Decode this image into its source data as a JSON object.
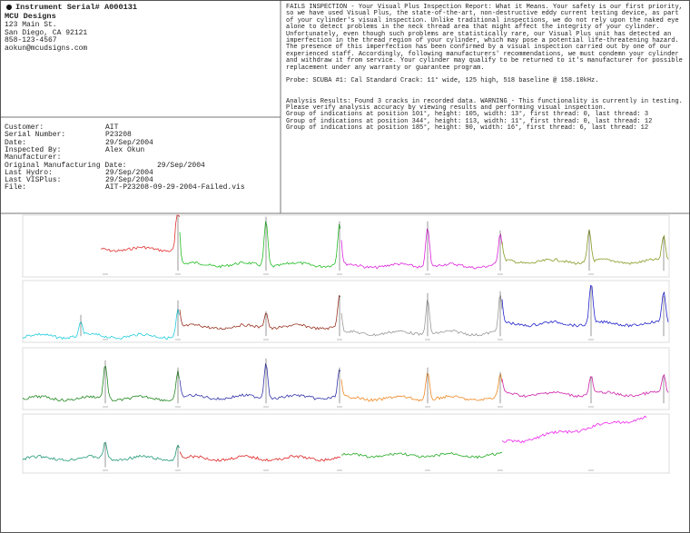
{
  "header": {
    "title": "Instrument Serial# A000131",
    "company": "MCU Designs",
    "address": [
      "123 Main St.",
      "San Diego, CA 92121",
      "858-123-4567",
      "aokun@mcudsigns.com"
    ]
  },
  "report": {
    "summary": [
      "FAILS INSPECTION - Your Visual Plus Inspection Report: What it Means. Your safety is our first priority,",
      "so we have used Visual Plus, the state-of-the-art, non-destructive eddy current testing device, as part",
      "of your cylinder's visual inspection. Unlike traditional inspections, we do not rely upon the naked eye",
      "alone to detect problems in the neck thread area that might affect the integrity of your cylinder.",
      "Unfortunately, even though such problems are statistically rare, our Visual Plus unit has detected an",
      "imperfection in the thread region of your cylinder, which may pose a potential life-threatening hazard.",
      "The presence of this imperfection has been confirmed by a visual inspection carried out by one of our",
      "experienced staff. Accordingly, following manufacturers' recommendations, we must condemn your cylinder",
      "and withdraw it from service. Your cylinder may qualify to be returned to it's manufacturer for possible",
      "replacement under any warranty or guarantee program."
    ],
    "probe": "Probe: SCUBA #1: Cal Standard Crack: 11° wide, 125 high, 518 baseline @ 158.10kHz.",
    "analysis": [
      "Analysis Results: Found 3 cracks in recorded data. WARNING - This functionality is currently in testing.",
      "Please verify analysis accuracy by viewing results and performing visual inspection.",
      "Group of indications at position 101°, height: 105, width: 13°, first thread: 0, last thread: 3",
      "Group of indications at position 344°, height: 113, width: 11°, first thread: 0, last thread: 12",
      "Group of indications at position 185°, height: 90, width: 16°, first thread: 6, last thread: 12"
    ]
  },
  "fields": [
    {
      "label": "Customer:",
      "value": "AIT"
    },
    {
      "label": "Serial Number:",
      "value": "P23208"
    },
    {
      "label": "Date:",
      "value": "29/Sep/2004"
    },
    {
      "label": "Inspected By:",
      "value": "Alex Okun"
    },
    {
      "label": "Manufacturer:"
    },
    {
      "label": "Original Manufacturing Date:",
      "value": "29/Sep/2004"
    },
    {
      "label": "Last Hydro:",
      "value": "29/Sep/2004"
    },
    {
      "label": "Last VISPlus:",
      "value": "29/Sep/2004"
    },
    {
      "label": "File:",
      "value": "AIT-P23208-09-29-2004-Failed.vis"
    }
  ]
}
